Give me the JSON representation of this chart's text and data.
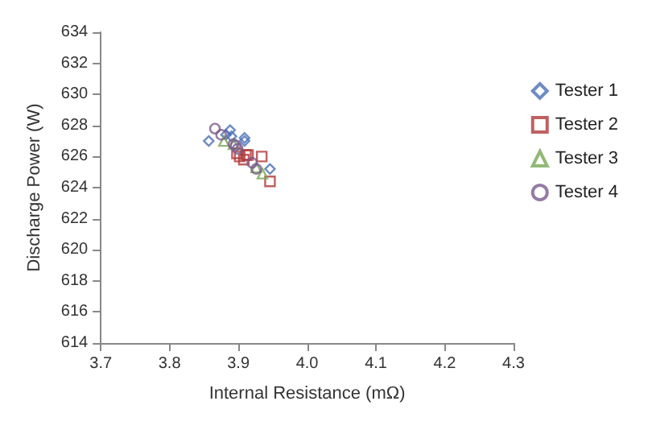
{
  "chart_data": {
    "type": "scatter",
    "xlabel": "Internal Resistance (mΩ)",
    "ylabel": "Discharge Power (W)",
    "xlim": [
      3.7,
      4.3
    ],
    "xticks": [
      {
        "value": 3.7,
        "label": "3.7"
      },
      {
        "value": 3.8,
        "label": "3.8"
      },
      {
        "value": 3.9,
        "label": "3.9"
      },
      {
        "value": 4.0,
        "label": "4.0"
      },
      {
        "value": 4.1,
        "label": "4.1"
      },
      {
        "value": 4.2,
        "label": "4.2"
      },
      {
        "value": 4.3,
        "label": "4.3"
      }
    ],
    "ylim": [
      614,
      634
    ],
    "yticks": [
      614,
      616,
      618,
      620,
      622,
      624,
      626,
      628,
      630,
      632,
      634
    ],
    "grid": false,
    "legend": "top right",
    "series": [
      {
        "name": "Tester 1",
        "color": "#4a6fb5",
        "marker": "diamond",
        "x": [
          3.857,
          3.888,
          3.909,
          3.909,
          3.946,
          3.89,
          3.882
        ],
        "values": [
          627.0,
          627.7,
          627.2,
          627.0,
          625.2,
          627.3,
          627.4
        ]
      },
      {
        "name": "Tester 2",
        "color": "#b03a3a",
        "marker": "square",
        "x": [
          3.934,
          3.946,
          3.902,
          3.911,
          3.914,
          3.908,
          3.898
        ],
        "values": [
          626.0,
          624.4,
          626.0,
          626.1,
          626.1,
          625.8,
          626.2
        ]
      },
      {
        "name": "Tester 3",
        "color": "#77a855",
        "marker": "triangle",
        "x": [
          3.879,
          3.935,
          3.893,
          3.926
        ],
        "values": [
          627.0,
          624.9,
          626.8,
          625.3
        ]
      },
      {
        "name": "Tester 4",
        "color": "#7a5a8e",
        "marker": "circle",
        "x": [
          3.866,
          3.875,
          3.893,
          3.896,
          3.926,
          3.92,
          3.899
        ],
        "values": [
          627.8,
          627.4,
          626.8,
          626.7,
          625.2,
          625.6,
          626.5
        ]
      }
    ]
  }
}
